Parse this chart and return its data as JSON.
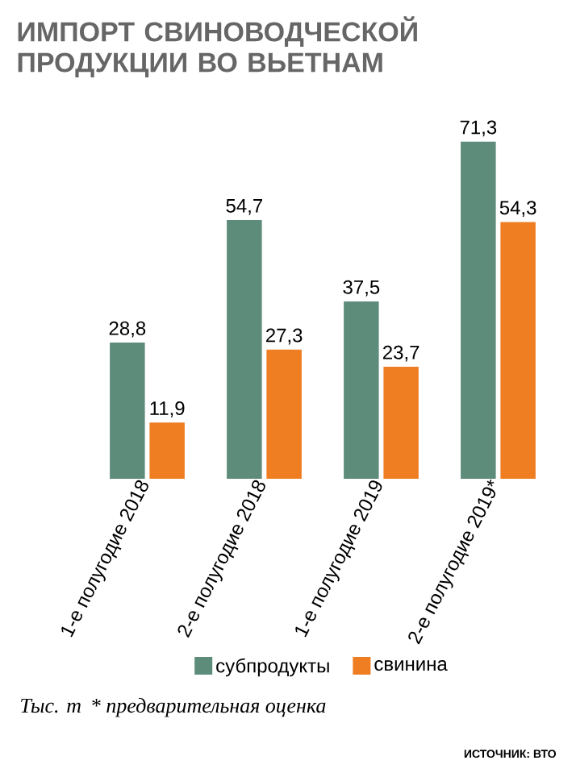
{
  "chart_data": {
    "type": "bar",
    "title": "ИМПОРТ СВИНОВОДЧЕСКОЙ ПРОДУКЦИИ ВО ВЬЕТНАМ",
    "categories": [
      "1-е полугодие 2018",
      "2-е полугодие 2018",
      "1-е полугодие 2019",
      "2-е полугодие 2019*"
    ],
    "series": [
      {
        "name": "субпродукты",
        "color": "#5e8c7a",
        "values": [
          28.8,
          54.7,
          37.5,
          71.3
        ],
        "value_labels": [
          "28,8",
          "54,7",
          "37,5",
          "71,3"
        ]
      },
      {
        "name": "свинина",
        "color": "#ef7d22",
        "values": [
          11.9,
          27.3,
          23.7,
          54.3
        ],
        "value_labels": [
          "11,9",
          "27,3",
          "23,7",
          "54,3"
        ]
      }
    ],
    "legend": "bottom",
    "annotations": [
      "Тыс. т",
      "* предварительная оценка",
      "ИСТОЧНИК: ВТО"
    ]
  }
}
